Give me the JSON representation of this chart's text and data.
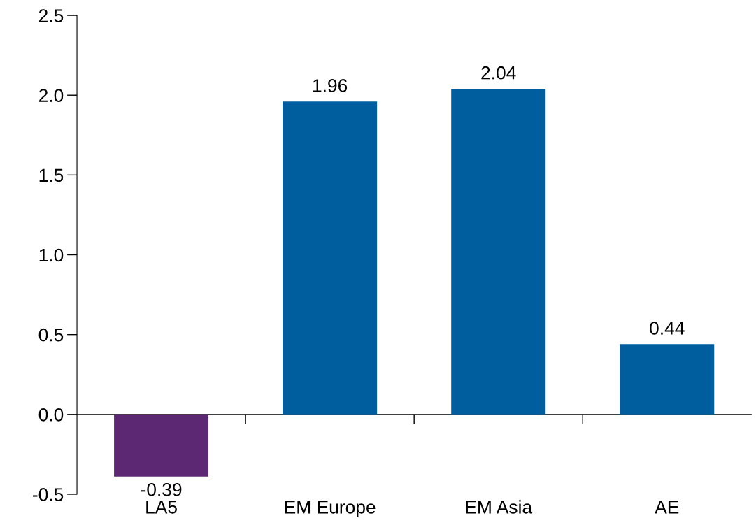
{
  "chart_data": {
    "type": "bar",
    "categories": [
      "LA5",
      "EM Europe",
      "EM Asia",
      "AE"
    ],
    "values": [
      -0.39,
      1.96,
      2.04,
      0.44
    ],
    "colors": [
      "#5c2874",
      "#005e9e",
      "#005e9e",
      "#005e9e"
    ],
    "ylim": [
      -0.5,
      2.5
    ],
    "yticks": [
      {
        "value": -0.5,
        "label": "-0.5"
      },
      {
        "value": 0,
        "label": "0.0"
      },
      {
        "value": 0.5,
        "label": "0.5"
      },
      {
        "value": 1,
        "label": "1.0"
      },
      {
        "value": 1.5,
        "label": "1.5"
      },
      {
        "value": 2,
        "label": "2.0"
      },
      {
        "value": 2.5,
        "label": "2.5"
      }
    ],
    "data_labels": true,
    "legend": false
  }
}
